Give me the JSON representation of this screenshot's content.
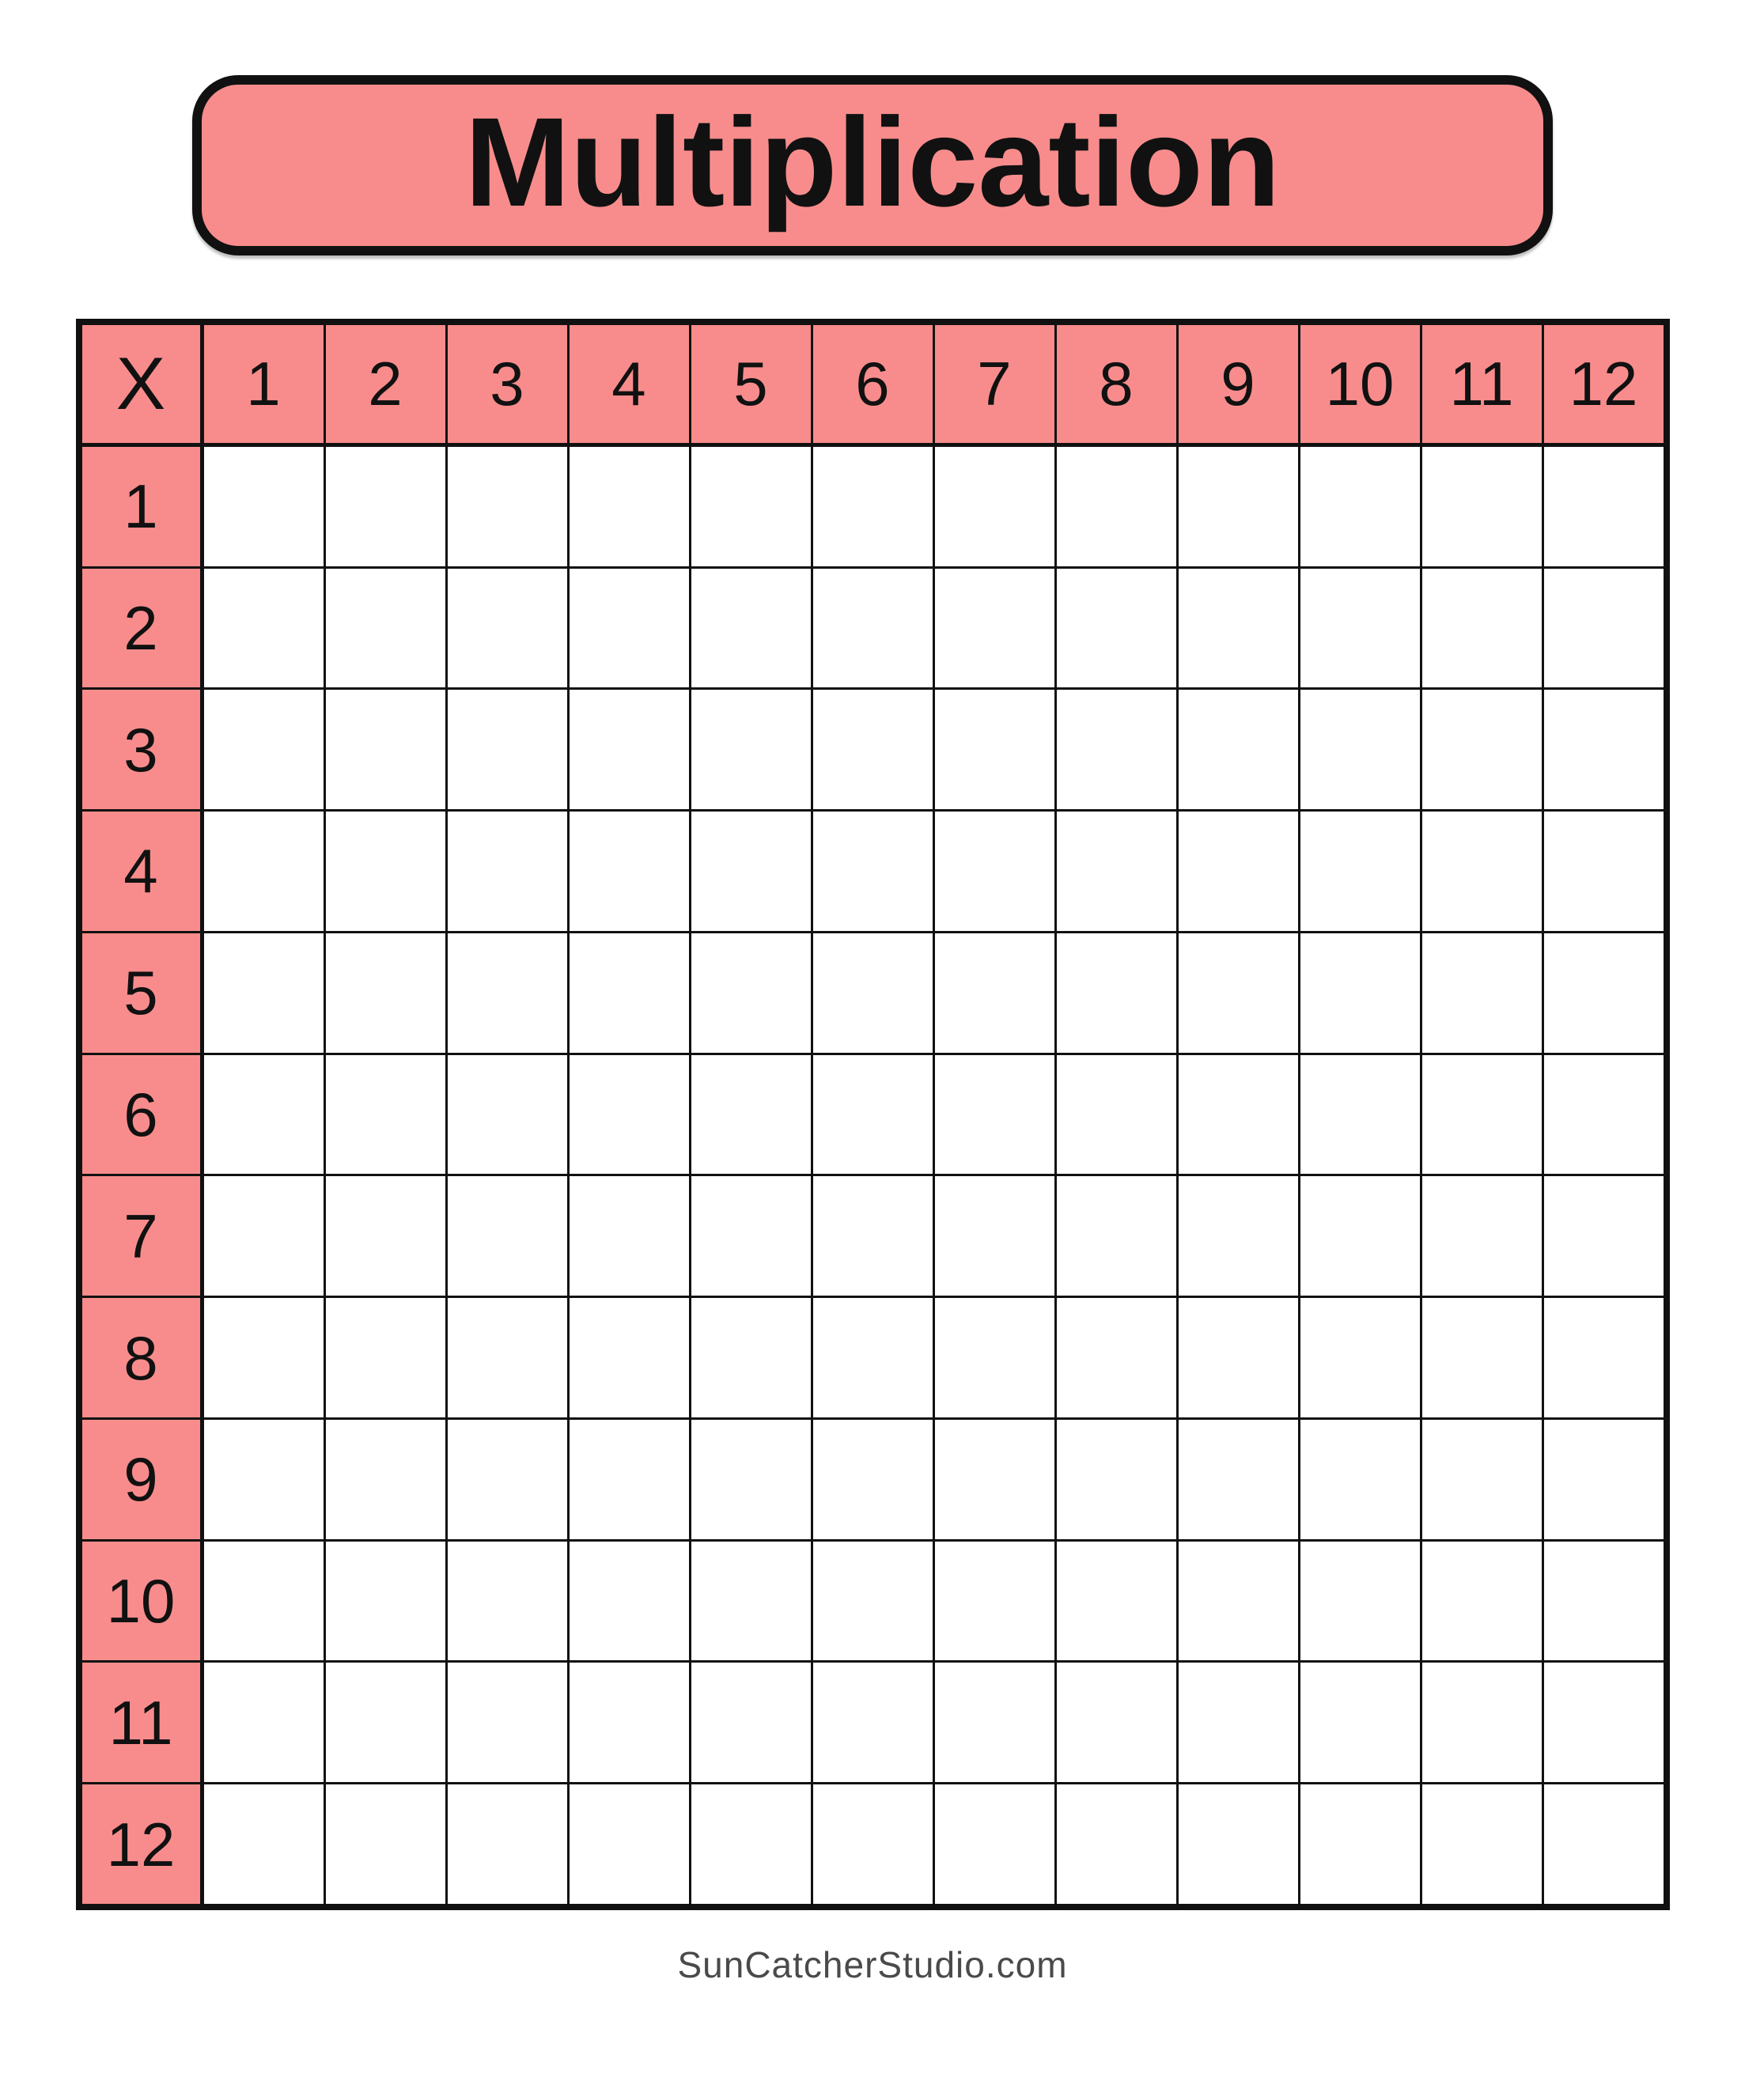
{
  "banner": {
    "title": "Multiplication"
  },
  "table": {
    "corner_label": "X",
    "column_headers": [
      "1",
      "2",
      "3",
      "4",
      "5",
      "6",
      "7",
      "8",
      "9",
      "10",
      "11",
      "12"
    ],
    "row_headers": [
      "1",
      "2",
      "3",
      "4",
      "5",
      "6",
      "7",
      "8",
      "9",
      "10",
      "11",
      "12"
    ],
    "empty_cell_value": "",
    "rows": 12,
    "cols": 12
  },
  "footer": {
    "credit": "SunCatcherStudio.com"
  },
  "colors": {
    "header_pink": "#F88C8C",
    "grid_line": "#111111",
    "title_text": "#111111",
    "footer_text": "#4a4a4a",
    "page_background": "#ffffff"
  }
}
